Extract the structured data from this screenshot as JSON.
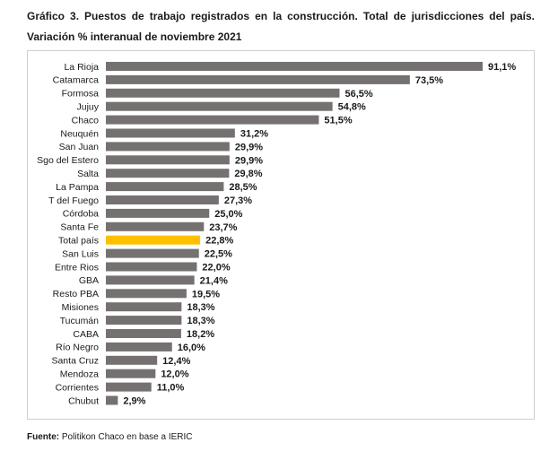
{
  "title_line1": "Gráfico 3. Puestos de trabajo registrados en la construcción. Total de jurisdicciones del país.",
  "title_line2": "Variación % interanual de noviembre 2021",
  "source_label": "Fuente:",
  "source_text": "Politikon Chaco en base a IERIC",
  "colors": {
    "bar": "#757171",
    "highlight": "#ffc000"
  },
  "chart_data": {
    "type": "bar",
    "orientation": "horizontal",
    "title": "Gráfico 3. Puestos de trabajo registrados en la construcción. Total de jurisdicciones del país. Variación % interanual de noviembre 2021",
    "categories": [
      "La Rioja",
      "Catamarca",
      "Formosa",
      "Jujuy",
      "Chaco",
      "Neuquén",
      "San Juan",
      "Sgo del Estero",
      "Salta",
      "La Pampa",
      "T del Fuego",
      "Córdoba",
      "Santa Fe",
      "Total país",
      "San Luis",
      "Entre Rios",
      "GBA",
      "Resto PBA",
      "Misiones",
      "Tucumán",
      "CABA",
      "Río Negro",
      "Santa Cruz",
      "Mendoza",
      "Corrientes",
      "Chubut"
    ],
    "values": [
      91.1,
      73.5,
      56.5,
      54.8,
      51.5,
      31.2,
      29.9,
      29.9,
      29.8,
      28.5,
      27.3,
      25.0,
      23.7,
      22.8,
      22.5,
      22.0,
      21.4,
      19.5,
      18.3,
      18.3,
      18.2,
      16.0,
      12.4,
      12.0,
      11.0,
      2.9
    ],
    "labels": [
      "91,1%",
      "73,5%",
      "56,5%",
      "54,8%",
      "51,5%",
      "31,2%",
      "29,9%",
      "29,9%",
      "29,8%",
      "28,5%",
      "27,3%",
      "25,0%",
      "23,7%",
      "22,8%",
      "22,5%",
      "22,0%",
      "21,4%",
      "19,5%",
      "18,3%",
      "18,3%",
      "18,2%",
      "16,0%",
      "12,4%",
      "12,0%",
      "11,0%",
      "2,9%"
    ],
    "highlight": "Total país",
    "xlim": [
      0,
      91.1
    ],
    "grid": false,
    "legend": "none"
  }
}
